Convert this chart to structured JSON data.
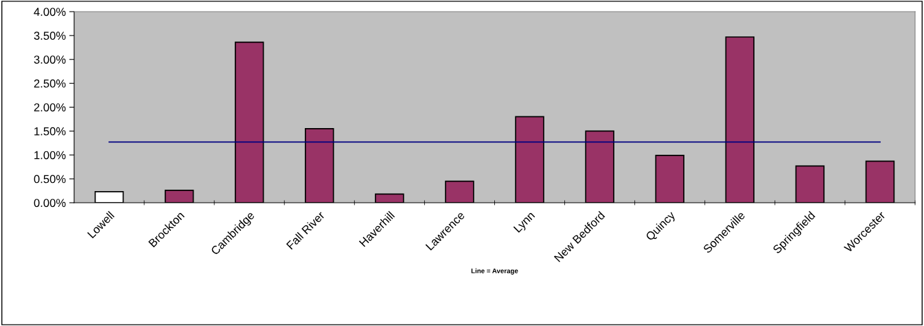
{
  "chart_data": {
    "type": "bar",
    "xlabel": "Line = Average",
    "categories": [
      "Lowell",
      "Brockton",
      "Cambridge",
      "Fall River",
      "Haverhill",
      "Lawrence",
      "Lynn",
      "New Bedford",
      "Quincy",
      "Somerville",
      "Springfield",
      "Worcester"
    ],
    "series": [
      {
        "colors": [
          "#ffffff",
          "#993366",
          "#993366",
          "#993366",
          "#993366",
          "#993366",
          "#993366",
          "#993366",
          "#993366",
          "#993366",
          "#993366",
          "#993366"
        ],
        "values": [
          0.23,
          0.26,
          3.36,
          1.55,
          0.18,
          0.45,
          1.8,
          1.5,
          0.99,
          3.47,
          0.77,
          0.87
        ]
      },
      {
        "type": "line",
        "color": "#000080",
        "values": [
          1.27,
          1.27,
          1.27,
          1.27,
          1.27,
          1.27,
          1.27,
          1.27,
          1.27,
          1.27,
          1.27,
          1.27
        ]
      }
    ],
    "ylim": [
      0,
      4
    ],
    "yticks": [
      {
        "value": 0,
        "label": "0.00%"
      },
      {
        "value": 0.5,
        "label": "0.50%"
      },
      {
        "value": 1,
        "label": "1.00%"
      },
      {
        "value": 1.5,
        "label": "1.50%"
      },
      {
        "value": 2,
        "label": "2.00%"
      },
      {
        "value": 2.5,
        "label": "2.50%"
      },
      {
        "value": 3,
        "label": "3.00%"
      },
      {
        "value": 3.5,
        "label": "3.50%"
      },
      {
        "value": 4,
        "label": "4.00%"
      }
    ],
    "grid": false
  }
}
